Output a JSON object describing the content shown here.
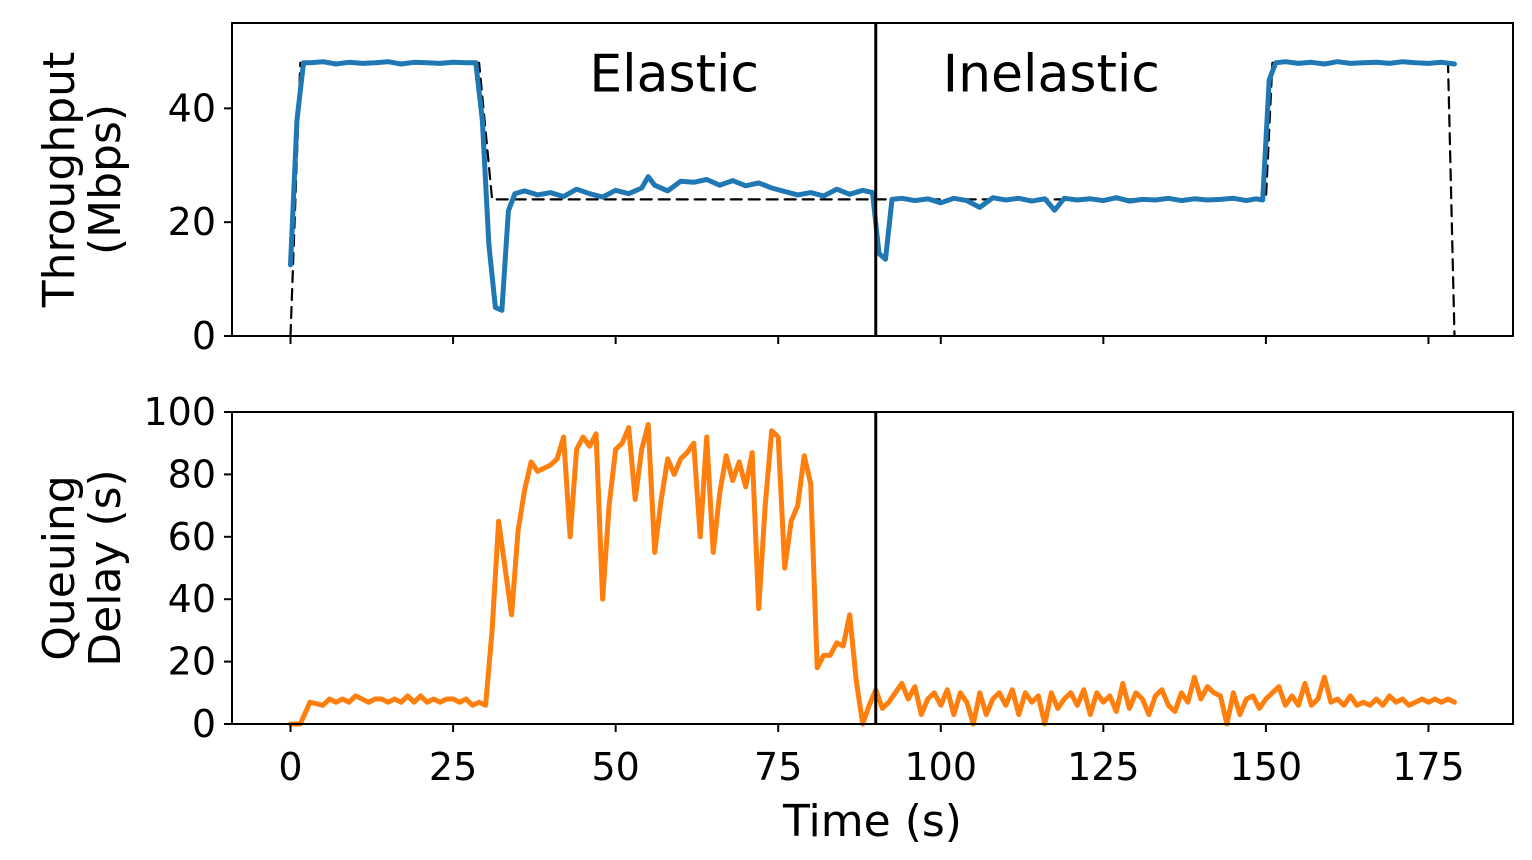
{
  "chart_data": [
    {
      "type": "line",
      "ylabel_line1": "Throughput",
      "ylabel_line2": "(Mbps)",
      "xlim": [
        -9,
        188
      ],
      "ylim": [
        0,
        55
      ],
      "yticks": [
        0,
        20,
        40
      ],
      "xticks": [
        0,
        25,
        50,
        75,
        100,
        125,
        150,
        175
      ],
      "show_xtick_labels": false,
      "annotations": [
        {
          "text": "Elastic",
          "x": 59,
          "y": 43
        },
        {
          "text": "Inelastic",
          "x": 117,
          "y": 43
        }
      ],
      "vline_x": 90,
      "series": [
        {
          "style": "dashed",
          "color": "#000000",
          "x": [
            0,
            1.5,
            29,
            31,
            90,
            91,
            150,
            151,
            178,
            179
          ],
          "y": [
            0,
            48,
            48,
            24,
            24,
            24,
            24,
            48,
            48,
            0
          ]
        },
        {
          "style": "solid",
          "color": "#1f77b4",
          "x": [
            0,
            1,
            2,
            3,
            5,
            7,
            9,
            11,
            13,
            15,
            17,
            19,
            21,
            23,
            25,
            27,
            28.5,
            29.5,
            30.5,
            31.5,
            32.5,
            33.5,
            34.5,
            36,
            38,
            40,
            42,
            44,
            46,
            48,
            50,
            52,
            54,
            55,
            56,
            58,
            60,
            62,
            64,
            66,
            68,
            70,
            72,
            74,
            76,
            78,
            80,
            82,
            84,
            86,
            88,
            89.5,
            90.5,
            91.5,
            92.5,
            94,
            96,
            98,
            100,
            102,
            104,
            106,
            108,
            110,
            112,
            114,
            116,
            117.5,
            119,
            121,
            123,
            125,
            127,
            129,
            131,
            133,
            135,
            137,
            139,
            141,
            143,
            145,
            147,
            148.5,
            149.5,
            150.5,
            151.5,
            153,
            155,
            157,
            159,
            161,
            163,
            165,
            167,
            169,
            171,
            173,
            175,
            177,
            179
          ],
          "y": [
            12.5,
            38,
            48,
            48,
            48.2,
            47.8,
            48.1,
            47.9,
            48,
            48.2,
            47.8,
            48.1,
            48,
            47.9,
            48.1,
            48,
            48,
            38,
            16,
            5,
            4.5,
            22,
            25,
            25.5,
            24.8,
            25.2,
            24.5,
            25.8,
            25,
            24.4,
            25.6,
            25,
            26,
            28,
            26.5,
            25.5,
            27.2,
            27,
            27.5,
            26.5,
            27.3,
            26.4,
            26.9,
            26,
            25.4,
            24.8,
            25.2,
            24.6,
            25.8,
            24.9,
            25.6,
            25.2,
            14.5,
            13.5,
            24,
            24.2,
            23.8,
            24.1,
            23.4,
            24.2,
            23.8,
            22.6,
            24.3,
            23.9,
            24.2,
            23.7,
            24.1,
            22.1,
            24.2,
            23.9,
            24.1,
            23.8,
            24.3,
            23.7,
            24,
            23.9,
            24.2,
            23.8,
            24.1,
            23.9,
            24,
            24.2,
            23.8,
            24.1,
            23.9,
            45,
            48,
            48.2,
            47.9,
            48.1,
            47.8,
            48.2,
            47.9,
            48,
            48.1,
            47.9,
            48.2,
            48,
            47.9,
            48.1,
            47.8
          ]
        }
      ]
    },
    {
      "type": "line",
      "ylabel_line1": "Queuing",
      "ylabel_line2": "Delay (s)",
      "xlabel": "Time (s)",
      "xlim": [
        -9,
        188
      ],
      "ylim": [
        0,
        100
      ],
      "yticks": [
        0,
        20,
        40,
        60,
        80,
        100
      ],
      "xticks": [
        0,
        25,
        50,
        75,
        100,
        125,
        150,
        175
      ],
      "show_xtick_labels": true,
      "vline_x": 90,
      "series": [
        {
          "style": "solid",
          "color": "#ff7f0e",
          "x": [
            0,
            1.5,
            3,
            5,
            6,
            7,
            8,
            9,
            10,
            11,
            12,
            13,
            14,
            15,
            16,
            17,
            18,
            19,
            20,
            21,
            22,
            23,
            24,
            25,
            26,
            27,
            28,
            29,
            30,
            31,
            32,
            33,
            34,
            35,
            36,
            37,
            38,
            39,
            40,
            41,
            42,
            43,
            44,
            45,
            46,
            47,
            48,
            49,
            50,
            51,
            52,
            53,
            54,
            55,
            56,
            57,
            58,
            59,
            60,
            61,
            62,
            63,
            64,
            65,
            66,
            67,
            68,
            69,
            70,
            71,
            72,
            73,
            74,
            75,
            76,
            77,
            78,
            79,
            80,
            81,
            82,
            83,
            84,
            85,
            86,
            87,
            88,
            89,
            90,
            91,
            92,
            93,
            94,
            95,
            96,
            97,
            98,
            99,
            100,
            101,
            102,
            103,
            104,
            105,
            106,
            107,
            108,
            109,
            110,
            111,
            112,
            113,
            114,
            115,
            116,
            117,
            118,
            119,
            120,
            121,
            122,
            123,
            124,
            125,
            126,
            127,
            128,
            129,
            130,
            131,
            132,
            133,
            134,
            135,
            136,
            137,
            138,
            139,
            140,
            141,
            142,
            143,
            144,
            145,
            146,
            147,
            148,
            149,
            150,
            151,
            152,
            153,
            154,
            155,
            156,
            157,
            158,
            159,
            160,
            161,
            162,
            163,
            164,
            165,
            166,
            167,
            168,
            169,
            170,
            171,
            172,
            173,
            174,
            175,
            176,
            177,
            178,
            179
          ],
          "y": [
            0,
            0,
            7,
            6,
            8,
            7,
            8,
            7,
            9,
            8,
            7,
            8,
            8,
            7,
            8,
            7,
            9,
            7,
            9,
            7,
            8,
            7,
            8,
            8,
            7,
            8,
            6,
            7,
            6,
            30,
            65,
            50,
            35,
            62,
            75,
            84,
            81,
            82,
            83,
            85,
            92,
            60,
            88,
            92,
            89,
            93,
            40,
            70,
            88,
            90,
            95,
            72,
            88,
            96,
            55,
            72,
            85,
            80,
            85,
            87,
            90,
            60,
            92,
            55,
            74,
            86,
            78,
            84,
            76,
            87,
            37,
            70,
            94,
            92,
            50,
            65,
            70,
            86,
            77,
            18,
            22,
            22,
            26,
            25,
            35,
            14,
            0,
            6,
            11,
            5,
            7,
            10,
            13,
            8,
            12,
            3,
            8,
            10,
            6,
            11,
            3,
            10,
            7,
            0,
            10,
            3,
            8,
            10,
            6,
            11,
            3,
            10,
            7,
            9,
            0,
            10,
            5,
            8,
            10,
            6,
            11,
            3,
            10,
            7,
            9,
            4,
            13,
            5,
            10,
            8,
            3,
            9,
            11,
            6,
            4,
            10,
            7,
            15,
            8,
            12,
            10,
            9,
            0,
            10,
            3,
            8,
            9,
            5,
            8,
            10,
            12,
            6,
            9,
            6,
            13,
            6,
            8,
            15,
            7,
            8,
            6,
            9,
            6,
            7,
            6,
            8,
            6,
            9,
            7,
            8,
            6,
            7,
            8,
            7,
            8,
            7,
            8,
            7
          ]
        }
      ]
    }
  ]
}
